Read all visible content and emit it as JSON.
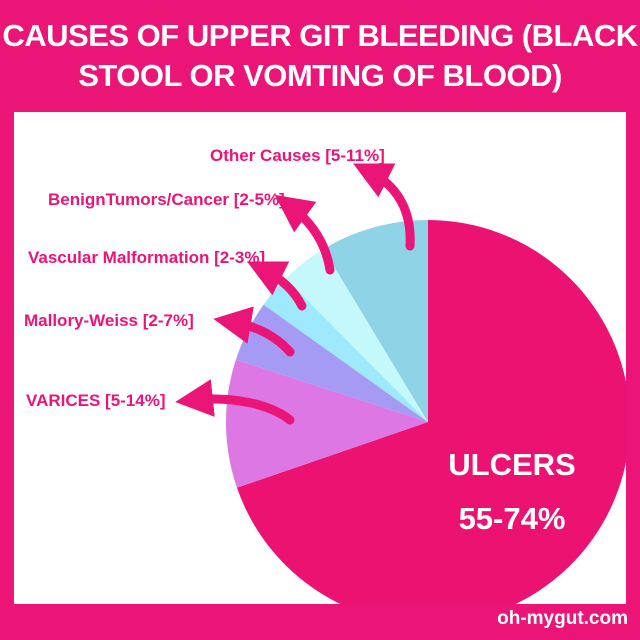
{
  "header": {
    "title_line1": "CAUSES OF UPPER GIT BLEEDING (BLACK",
    "title_line2": "STOOL OR VOMTING OF BLOOD)"
  },
  "footer": {
    "site": "oh-mygut.com"
  },
  "colors": {
    "brand": "#ea1577",
    "ulcers": "#ec1272",
    "varices": "#dc77e3",
    "mallory_weiss": "#a59bf5",
    "vascular": "#9ee9fb",
    "benign_tumors": "#c4f8fb",
    "other": "#8ed3e6"
  },
  "chart_data": {
    "type": "pie",
    "title": "CAUSES OF UPPER GIT BLEEDING (BLACK STOOL OR VOMTING OF BLOOD)",
    "slices": [
      {
        "label": "ULCERS",
        "range": "55-74%",
        "value": 64.5,
        "color": "#ec1272"
      },
      {
        "label": "VARICES",
        "range": "5-14%",
        "value": 9.5,
        "color": "#dc77e3"
      },
      {
        "label": "Mallory-Weiss",
        "range": "2-7%",
        "value": 4.5,
        "color": "#a59bf5"
      },
      {
        "label": "Vascular Malformation",
        "range": "2-3%",
        "value": 2.5,
        "color": "#9ee9fb"
      },
      {
        "label": "BenignTumors/Cancer",
        "range": "2-5%",
        "value": 3.5,
        "color": "#c4f8fb"
      },
      {
        "label": "Other Causes",
        "range": "5-11%",
        "value": 8,
        "color": "#8ed3e6"
      }
    ],
    "callouts": [
      {
        "text": "Other Causes [5-11%]"
      },
      {
        "text": "BenignTumors/Cancer [2-5%]"
      },
      {
        "text": "Vascular Malformation [2-3%]"
      },
      {
        "text": "Mallory-Weiss [2-7%]"
      },
      {
        "text": "VARICES [5-14%]"
      }
    ],
    "main_label": {
      "line1": "ULCERS",
      "line2": "55-74%"
    }
  }
}
